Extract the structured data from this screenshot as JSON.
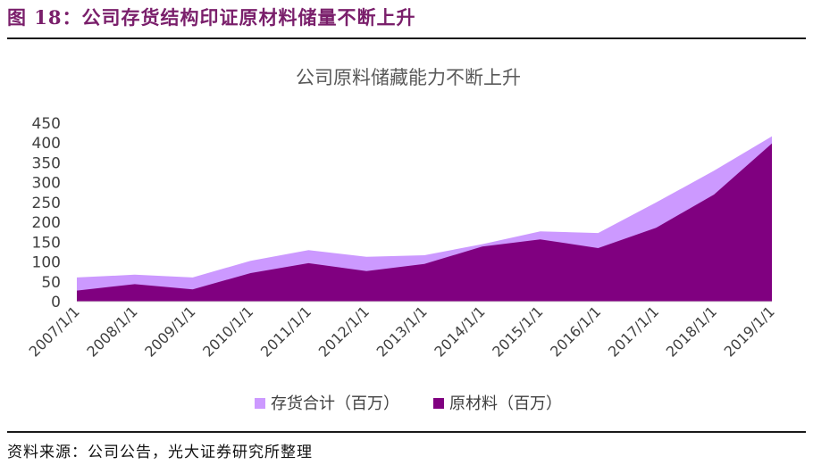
{
  "figure": {
    "title": "图 18：公司存货结构印证原材料储量不断上升",
    "source": "资料来源：公司公告，光大证券研究所整理"
  },
  "chart_data": {
    "type": "area",
    "title": "公司原料储藏能力不断上升",
    "categories": [
      "2007/1/1",
      "2008/1/1",
      "2009/1/1",
      "2010/1/1",
      "2011/1/1",
      "2012/1/1",
      "2013/1/1",
      "2014/1/1",
      "2015/1/1",
      "2016/1/1",
      "2017/1/1",
      "2018/1/1",
      "2019/1/1"
    ],
    "series": [
      {
        "name": "存货合计（百万）",
        "color": "#cc99ff",
        "values": [
          61,
          68,
          61,
          103,
          130,
          113,
          117,
          145,
          177,
          173,
          250,
          330,
          417
        ]
      },
      {
        "name": "原材料（百万）",
        "color": "#800080",
        "values": [
          28,
          44,
          31,
          72,
          97,
          77,
          95,
          139,
          157,
          135,
          186,
          270,
          399
        ]
      }
    ],
    "ylim": [
      0,
      450
    ],
    "yticks": [
      0,
      50,
      100,
      150,
      200,
      250,
      300,
      350,
      400,
      450
    ],
    "grid": false,
    "legend_position": "bottom"
  }
}
